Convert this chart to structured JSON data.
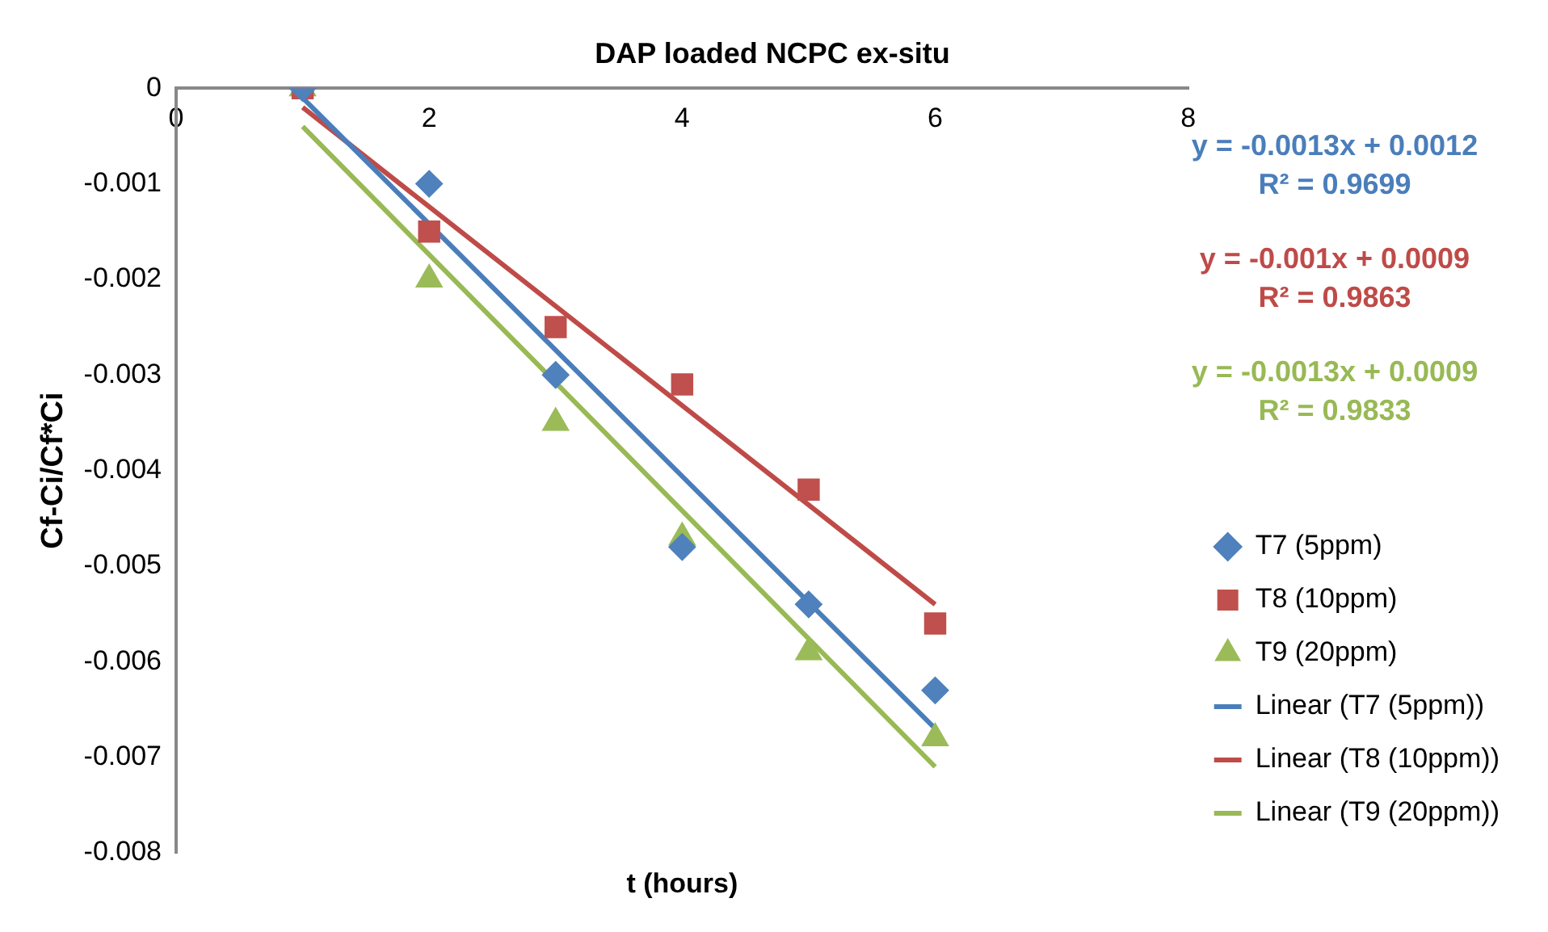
{
  "chart_data": {
    "type": "scatter",
    "title": "DAP loaded NCPC ex-situ",
    "xlabel": "t (hours)",
    "ylabel": "Cf-Ci/Cf*Ci",
    "xlim": [
      0,
      8
    ],
    "xticks": [
      0,
      2,
      4,
      6,
      8
    ],
    "ylim": [
      -0.008,
      0
    ],
    "yticks": [
      -0.008,
      -0.007,
      -0.006,
      -0.005,
      -0.004,
      -0.003,
      -0.002,
      -0.001,
      0
    ],
    "grid": false,
    "legend": "right",
    "annotations": [
      "y = -0.0013x + 0.0012\nR² = 0.9699",
      "y = -0.001x + 0.0009\nR² = 0.9863",
      "y = -0.0013x + 0.0009\nR² = 0.9833"
    ],
    "series": [
      {
        "name": "T7 (5ppm)",
        "marker": "diamond",
        "color": "#4f81bd",
        "x": [
          1,
          2,
          3,
          4,
          5,
          6
        ],
        "values": [
          0,
          -0.001,
          -0.003,
          -0.0048,
          -0.0054,
          -0.0063
        ]
      },
      {
        "name": "T8 (10ppm)",
        "marker": "square",
        "color": "#c0504d",
        "x": [
          1,
          2,
          3,
          4,
          5,
          6
        ],
        "values": [
          0,
          -0.0015,
          -0.0025,
          -0.0031,
          -0.0042,
          -0.0056
        ]
      },
      {
        "name": "T9 (20ppm)",
        "marker": "triangle",
        "color": "#9bbb59",
        "x": [
          1,
          2,
          3,
          4,
          5,
          6
        ],
        "values": [
          0,
          -0.002,
          -0.0035,
          -0.0047,
          -0.0059,
          -0.0068
        ]
      },
      {
        "name": "Linear (T7 (5ppm))",
        "type": "line",
        "marker": "none",
        "line_style": "solid",
        "color": "#4a7ebb",
        "x": [
          1,
          6
        ],
        "values": [
          -0.0001,
          -0.0067
        ]
      },
      {
        "name": "Linear (T8 (10ppm))",
        "type": "line",
        "marker": "none",
        "line_style": "solid",
        "color": "#be4b48",
        "x": [
          1,
          6
        ],
        "values": [
          -0.0002,
          -0.0054
        ]
      },
      {
        "name": "Linear (T9 (20ppm))",
        "type": "line",
        "marker": "none",
        "line_style": "solid",
        "color": "#98b954",
        "x": [
          1,
          6
        ],
        "values": [
          -0.0004,
          -0.0071
        ]
      }
    ]
  }
}
